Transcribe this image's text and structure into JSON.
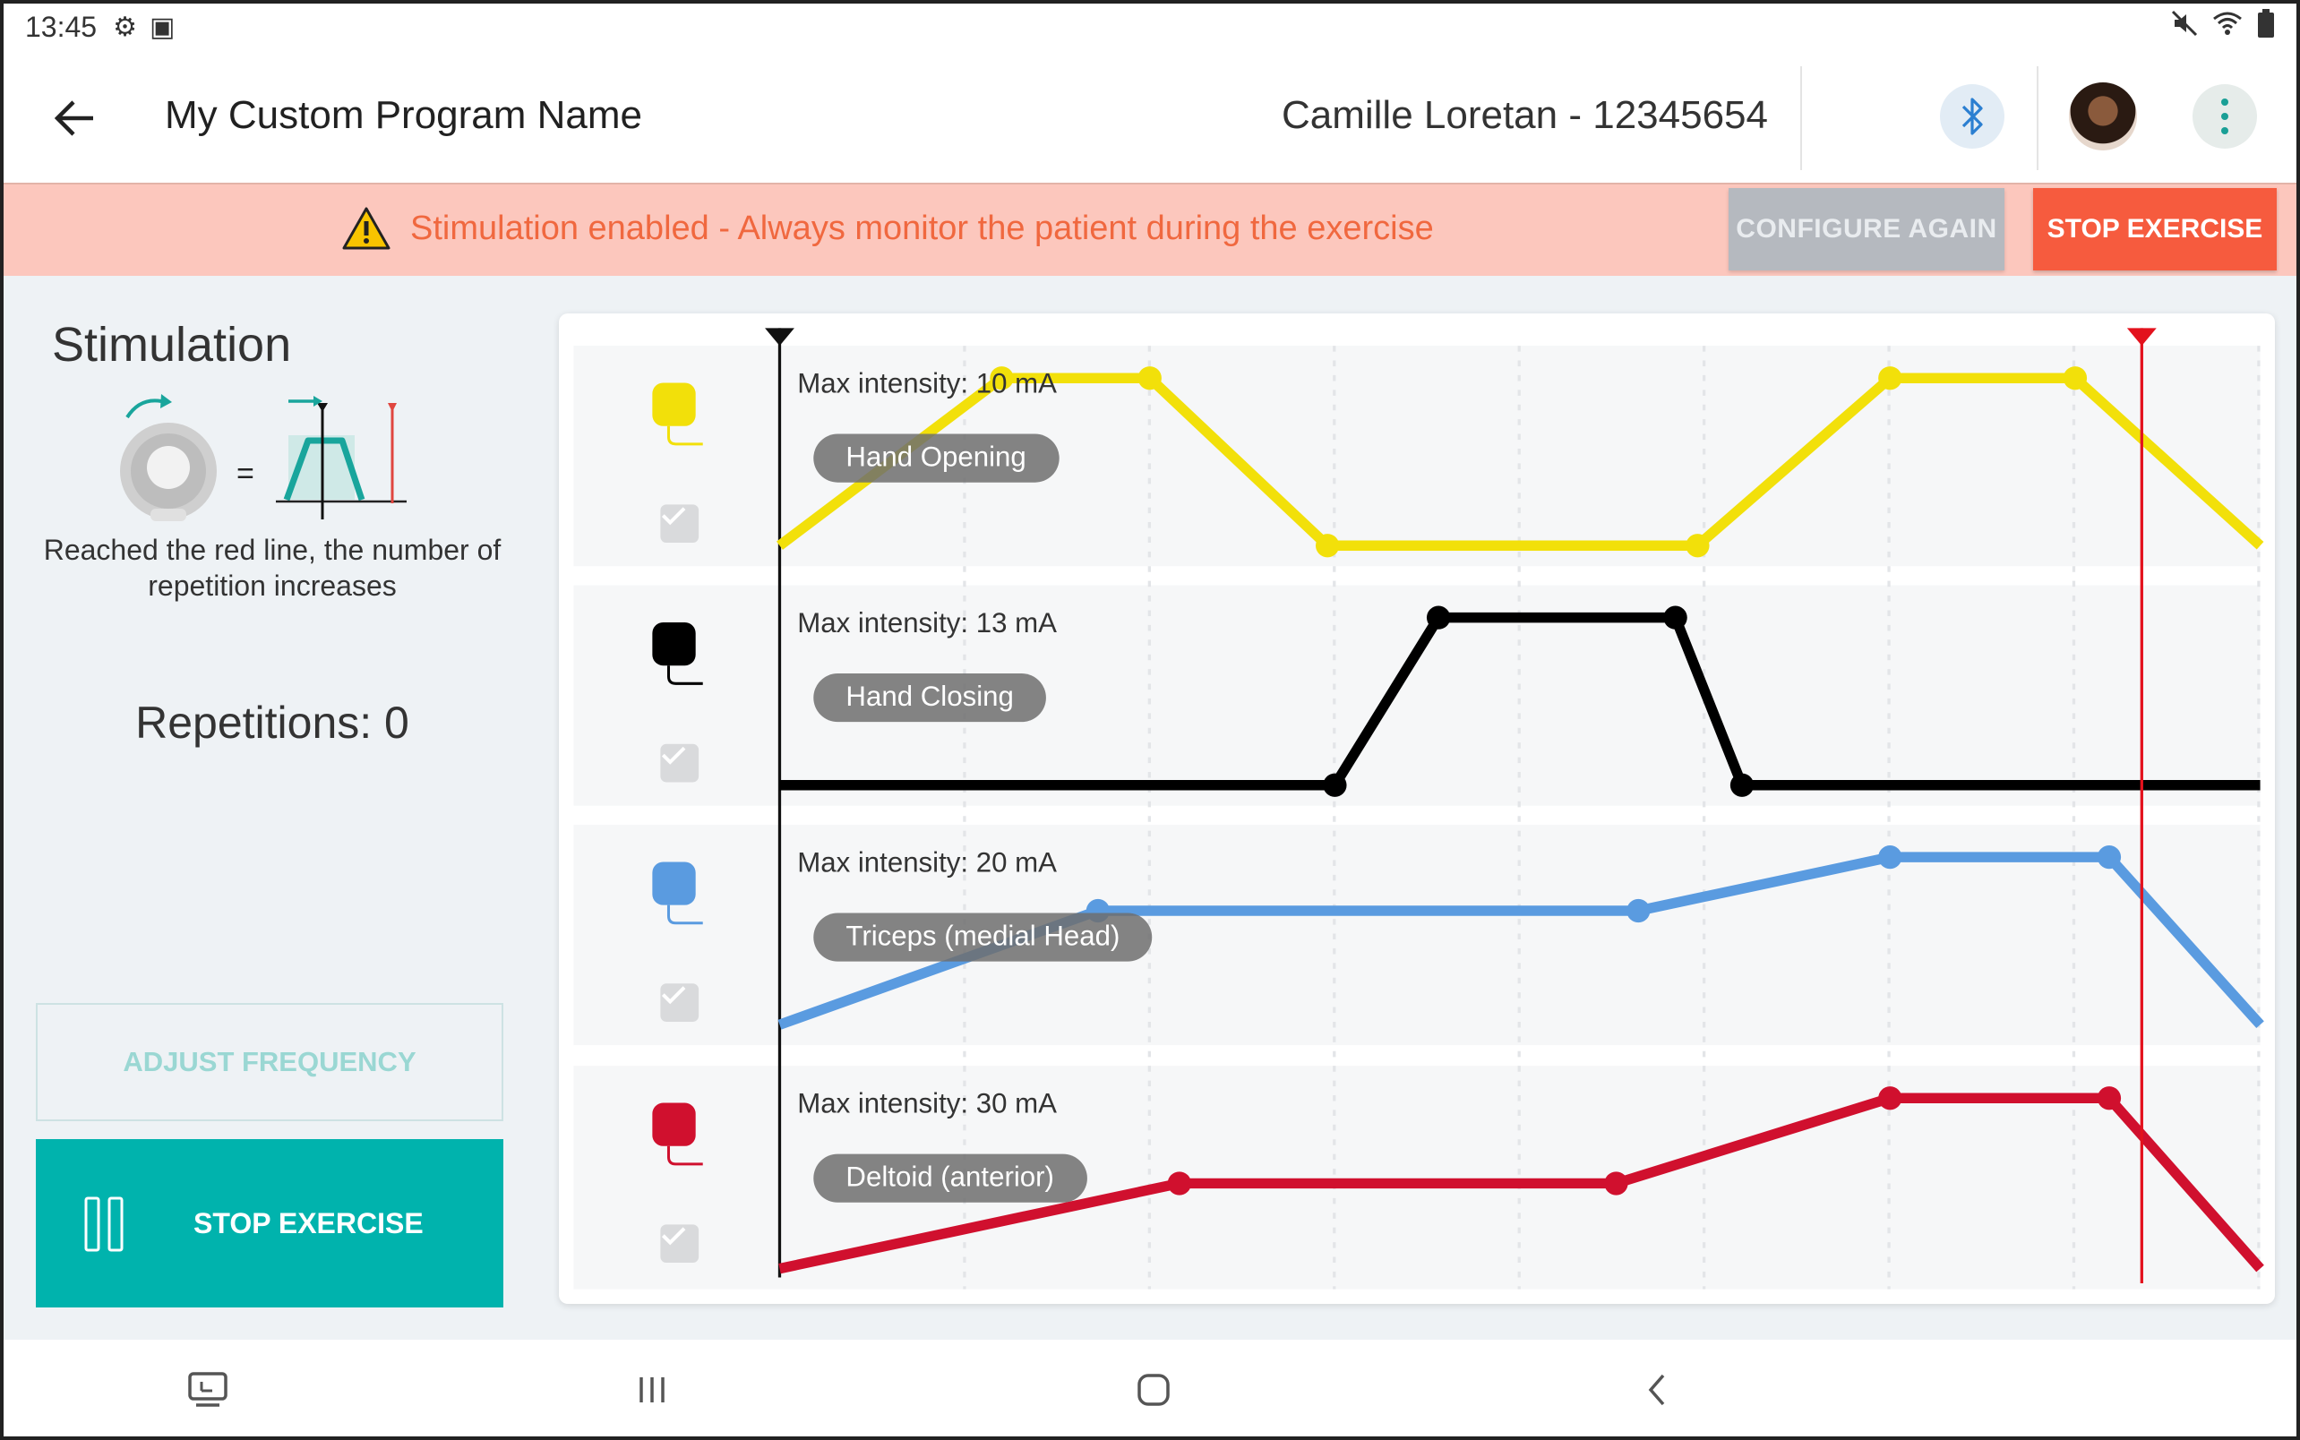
{
  "status_bar": {
    "time": "13:45"
  },
  "app_bar": {
    "title": "My Custom Program Name",
    "patient": "Camille Loretan - 12345654"
  },
  "banner": {
    "warning": "Stimulation enabled - Always monitor the patient during the exercise",
    "configure_label": "CONFIGURE AGAIN",
    "stop_label": "STOP EXERCISE"
  },
  "side_panel": {
    "title": "Stimulation",
    "description": "Reached the red line, the number of repetition increases",
    "repetitions": "Repetitions: 0",
    "adjust_label": "ADJUST FREQUENCY",
    "stop_label": "STOP EXERCISE"
  },
  "colors": {
    "accent": "#00b3ad",
    "warning_bg": "#fcc7bd",
    "warning_text": "#f0683f",
    "stop_button": "#f65b3e",
    "disabled_button": "#b5b9bf"
  },
  "chart_data": {
    "type": "line",
    "playhead_position": 0.92,
    "channels": [
      {
        "label": "Max intensity: 10 mA",
        "muscle": "Hand Opening",
        "color": "#f2e00a",
        "checked": true,
        "points": [
          [
            0.0,
            0.0
          ],
          [
            0.15,
            1.0
          ],
          [
            0.25,
            1.0
          ],
          [
            0.37,
            0.0
          ],
          [
            0.62,
            0.0
          ],
          [
            0.75,
            1.0
          ],
          [
            0.875,
            1.0
          ],
          [
            1.0,
            0.0
          ]
        ]
      },
      {
        "label": "Max intensity: 13 mA",
        "muscle": "Hand Closing",
        "color": "#000000",
        "checked": true,
        "points": [
          [
            0.0,
            0.0
          ],
          [
            0.375,
            0.0
          ],
          [
            0.445,
            1.0
          ],
          [
            0.605,
            1.0
          ],
          [
            0.65,
            0.0
          ],
          [
            1.0,
            0.0
          ]
        ]
      },
      {
        "label": "Max intensity: 20 mA",
        "muscle": "Triceps (medial Head)",
        "color": "#5a9be0",
        "checked": true,
        "points": [
          [
            0.0,
            0.0
          ],
          [
            0.215,
            0.68
          ],
          [
            0.58,
            0.68
          ],
          [
            0.75,
            1.0
          ],
          [
            0.898,
            1.0
          ],
          [
            1.0,
            0.0
          ]
        ]
      },
      {
        "label": "Max intensity: 30 mA",
        "muscle": "Deltoid (anterior)",
        "color": "#d0102e",
        "checked": true,
        "points": [
          [
            0.0,
            0.0
          ],
          [
            0.27,
            0.5
          ],
          [
            0.565,
            0.5
          ],
          [
            0.75,
            1.0
          ],
          [
            0.898,
            1.0
          ],
          [
            1.0,
            0.0
          ]
        ]
      }
    ]
  }
}
